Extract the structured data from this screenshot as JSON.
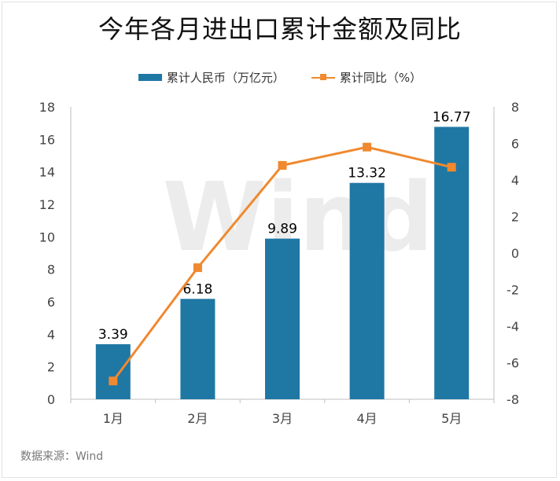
{
  "title": "今年各月进出口累计金额及同比",
  "source": "数据来源：Wind",
  "watermark": "Wind",
  "colors": {
    "bar": "#1f77a4",
    "line": "#f0892f",
    "axis": "#bfbfbf",
    "watermark": "#ececec"
  },
  "chart_data": {
    "type": "bar",
    "categories": [
      "1月",
      "2月",
      "3月",
      "4月",
      "5月"
    ],
    "series": [
      {
        "name": "累计人民币（万亿元）",
        "type": "bar",
        "axis": "left",
        "values": [
          3.39,
          6.18,
          9.89,
          13.32,
          16.77
        ],
        "labels": [
          "3.39",
          "6.18",
          "9.89",
          "13.32",
          "16.77"
        ]
      },
      {
        "name": "累计同比（%）",
        "type": "line",
        "axis": "right",
        "values": [
          -7.0,
          -0.8,
          4.8,
          5.8,
          4.7
        ]
      }
    ],
    "y_left": {
      "min": 0,
      "max": 18,
      "ticks": [
        "0",
        "2",
        "4",
        "6",
        "8",
        "10",
        "12",
        "14",
        "16",
        "18"
      ]
    },
    "y_right": {
      "min": -8,
      "max": 8,
      "ticks": [
        "-8",
        "-6",
        "-4",
        "-2",
        "0",
        "2",
        "4",
        "6",
        "8"
      ]
    },
    "grid": false,
    "legend_position": "top-center"
  }
}
